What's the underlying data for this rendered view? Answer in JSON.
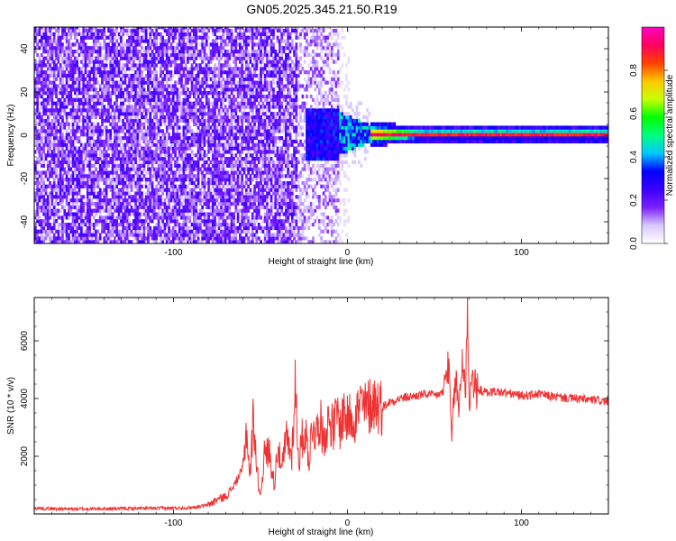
{
  "title": "GN05.2025.345.21.50.R19",
  "chart_data": [
    {
      "type": "heatmap",
      "xlabel": "Height of straight line (km)",
      "ylabel": "Frequency (Hz)",
      "xlim": [
        -180,
        150
      ],
      "ylim": [
        -50,
        50
      ],
      "xticks": [
        -100,
        0,
        100
      ],
      "xtick_labels": [
        "-100",
        "0",
        "100"
      ],
      "yticks": [
        -40,
        -20,
        0,
        20,
        40
      ],
      "ytick_labels": [
        "-40",
        "-20",
        "0",
        "20",
        "40"
      ],
      "description_regions": [
        {
          "x_range": [
            -180,
            -30
          ],
          "f_range": [
            -50,
            50
          ],
          "amplitude": 0.2
        },
        {
          "x_range": [
            -30,
            0
          ],
          "f_range": [
            -50,
            50
          ],
          "amplitude": 0.15
        },
        {
          "x_range": [
            -20,
            10
          ],
          "f_range": [
            -12,
            12
          ],
          "amplitude": 0.3
        },
        {
          "x_range": [
            10,
            150
          ],
          "f_range": [
            -2,
            2
          ],
          "amplitude": 0.95
        }
      ],
      "colorbar": {
        "label": "Normalized spectral amplitude",
        "range": [
          0,
          1
        ],
        "ticks": [
          0.0,
          0.2,
          0.4,
          0.6,
          0.8
        ],
        "tick_labels": [
          "0.0",
          "0.2",
          "0.4",
          "0.6",
          "0.8"
        ],
        "colormap": [
          "#ffffff",
          "#d9c8ff",
          "#7a1fff",
          "#3a00ff",
          "#0000ff",
          "#00c8ff",
          "#00ff80",
          "#00ff00",
          "#c8ff00",
          "#ffc800",
          "#ff4000",
          "#ff0060",
          "#ff00c0"
        ]
      },
      "grid": false
    },
    {
      "type": "line",
      "xlabel": "Height of straight line (km)",
      "ylabel": "SNR (10 * v/v)",
      "xlim": [
        -180,
        150
      ],
      "ylim": [
        0,
        7500
      ],
      "xticks": [
        -100,
        0,
        100
      ],
      "xtick_labels": [
        "-100",
        "0",
        "100"
      ],
      "yticks": [
        2000,
        4000,
        6000
      ],
      "ytick_labels": [
        "2000",
        "4000",
        "6000"
      ],
      "color": "#ee3333",
      "series": [
        {
          "x": [
            -180,
            -160,
            -140,
            -120,
            -100,
            -90,
            -80,
            -75,
            -70,
            -65,
            -60,
            -58,
            -56,
            -54,
            -52,
            -50,
            -48,
            -45,
            -42,
            -40,
            -38,
            -35,
            -32,
            -30,
            -28,
            -26,
            -24,
            -22,
            -20,
            -18,
            -16,
            -14,
            -12,
            -10,
            -8,
            -6,
            -4,
            -2,
            0,
            2,
            4,
            6,
            8,
            10,
            15,
            20,
            25,
            30,
            35,
            40,
            45,
            50,
            55,
            58,
            60,
            62,
            64,
            66,
            68,
            69,
            70,
            72,
            74,
            76,
            80,
            85,
            90,
            95,
            100,
            110,
            120,
            130,
            140,
            150
          ],
          "y": [
            200,
            170,
            180,
            190,
            200,
            220,
            300,
            500,
            600,
            1000,
            1600,
            3000,
            1200,
            3500,
            1500,
            600,
            2000,
            2200,
            1000,
            2500,
            1400,
            2700,
            2000,
            4500,
            1800,
            2600,
            2800,
            1900,
            3200,
            2700,
            3400,
            2600,
            3000,
            3300,
            2900,
            3500,
            3000,
            3600,
            3200,
            3500,
            3300,
            3600,
            3800,
            3600,
            3900,
            3700,
            3900,
            4000,
            4050,
            4100,
            4150,
            4100,
            4200,
            5200,
            2500,
            4800,
            3600,
            5400,
            4300,
            7400,
            3900,
            4800,
            4200,
            4300,
            4200,
            4250,
            4200,
            4150,
            4100,
            4150,
            4050,
            4000,
            3950,
            3900
          ]
        }
      ],
      "grid": false
    }
  ]
}
